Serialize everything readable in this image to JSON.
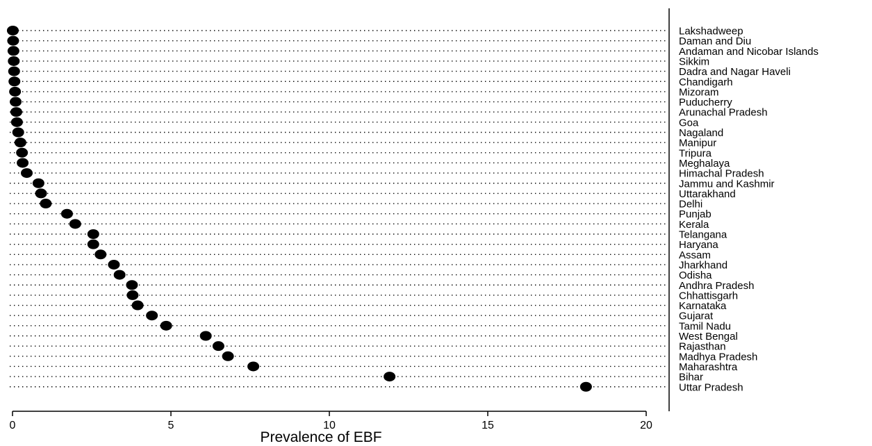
{
  "chart_data": {
    "type": "scatter",
    "title": "",
    "xlabel": "Prevalence of EBF",
    "ylabel": "",
    "xlim": [
      0,
      20
    ],
    "xticks": [
      0,
      5,
      10,
      15,
      20
    ],
    "grid": "dotted horizontal guide lines per category",
    "marker_color": "#000000",
    "categories": [
      "Lakshadweep",
      "Daman and Diu",
      "Andaman and Nicobar Islands",
      "Sikkim",
      "Dadra and Nagar Haveli",
      "Chandigarh",
      "Mizoram",
      "Puducherry",
      "Arunachal Pradesh",
      "Goa",
      "Nagaland",
      "Manipur",
      "Tripura",
      "Meghalaya",
      "Himachal Pradesh",
      "Jammu and Kashmir",
      "Uttarakhand",
      "Delhi",
      "Punjab",
      "Kerala",
      "Telangana",
      "Haryana",
      "Assam",
      "Jharkhand",
      "Odisha",
      "Andhra Pradesh",
      "Chhattisgarh",
      "Karnataka",
      "Gujarat",
      "Tamil Nadu",
      "West Bengal",
      "Rajasthan",
      "Madhya Pradesh",
      "Maharashtra",
      "Bihar",
      "Uttar Pradesh"
    ],
    "values": [
      0.01,
      0.02,
      0.03,
      0.04,
      0.05,
      0.06,
      0.08,
      0.1,
      0.12,
      0.14,
      0.18,
      0.25,
      0.3,
      0.32,
      0.45,
      0.82,
      0.9,
      1.05,
      1.72,
      1.98,
      2.55,
      2.55,
      2.78,
      3.2,
      3.38,
      3.77,
      3.79,
      3.95,
      4.4,
      4.85,
      6.1,
      6.5,
      6.8,
      7.6,
      11.9,
      18.1
    ]
  }
}
